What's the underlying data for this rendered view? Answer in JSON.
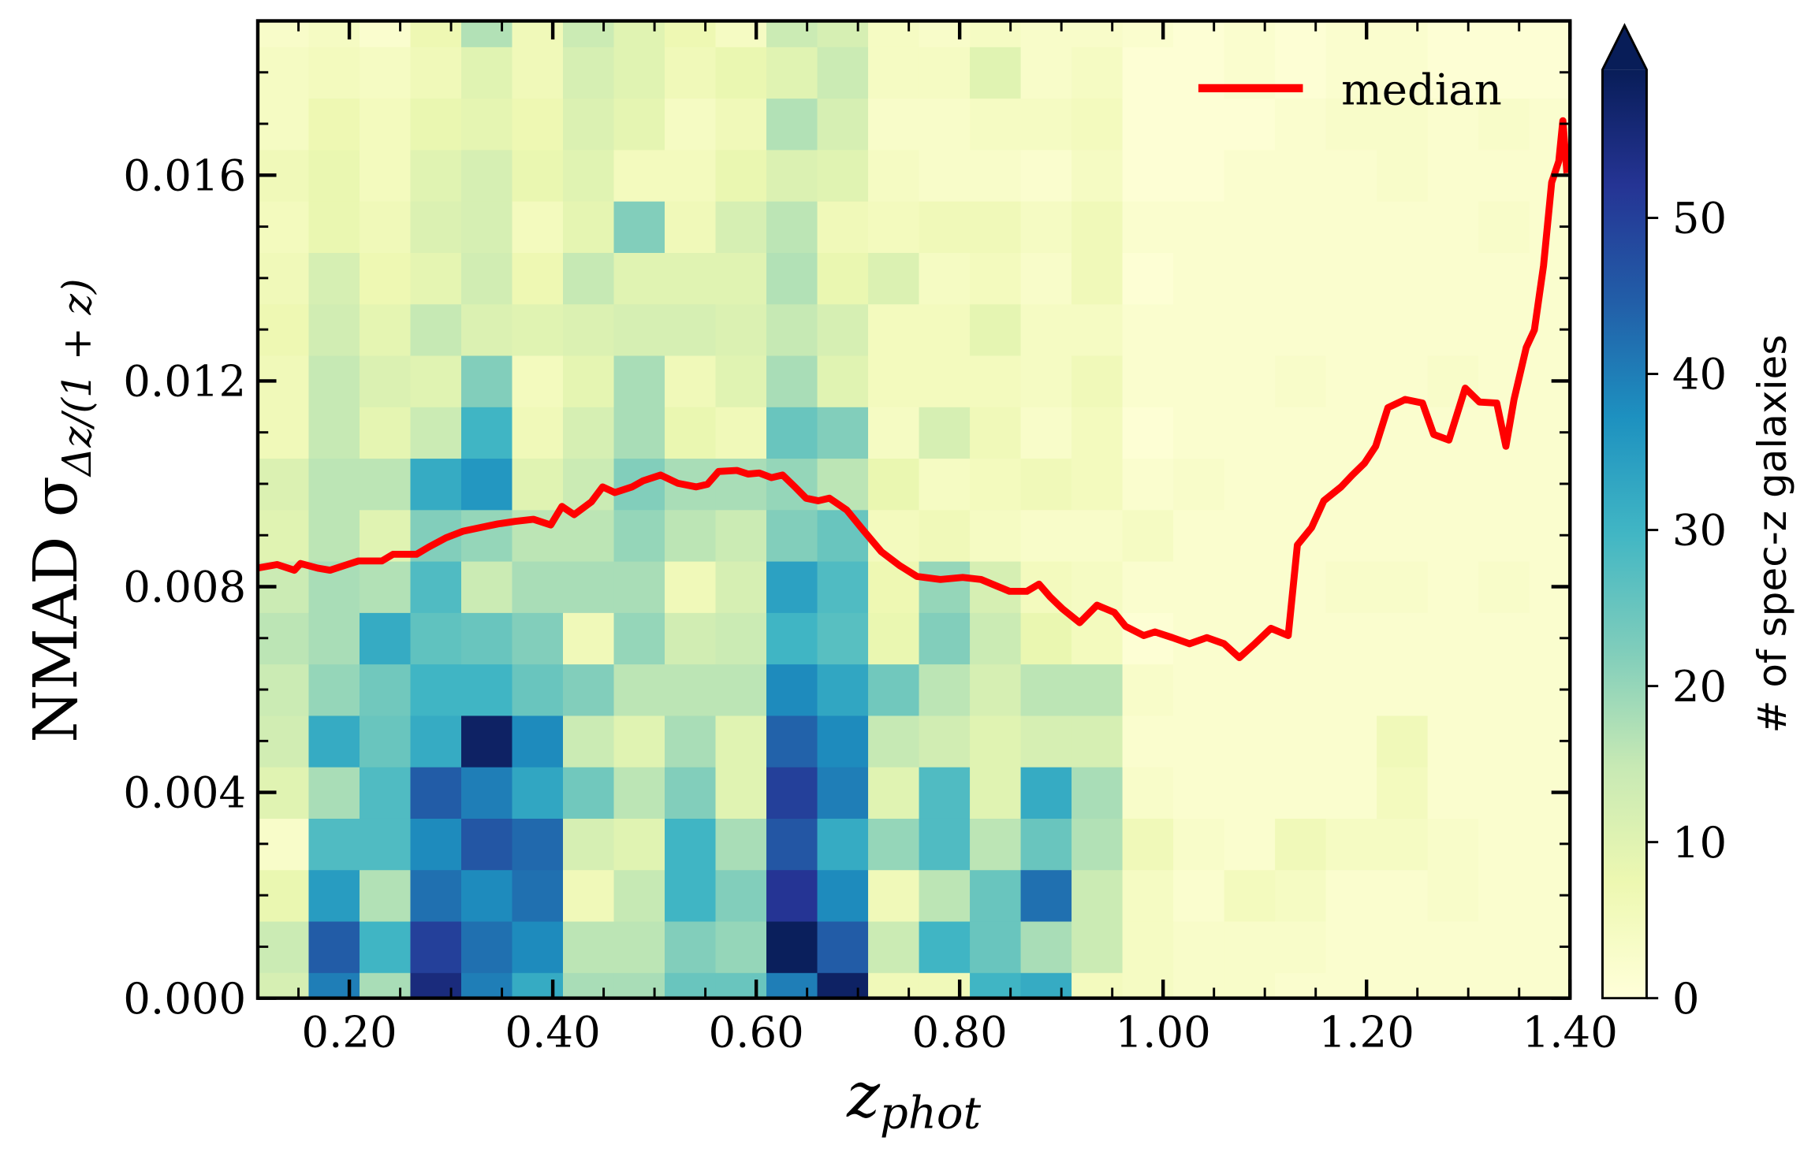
{
  "chart_data": {
    "type": "heatmap",
    "xlabel": {
      "main": "z",
      "sub": "phot"
    },
    "ylabel": {
      "main": "NMAD σ",
      "sub": "Δz/(1 + z)"
    },
    "colorbar_label": "# of spec-z galaxies",
    "colormap": "YlGnBu",
    "clim": [
      0,
      59.5
    ],
    "cticks": [
      0,
      10,
      20,
      30,
      40,
      50
    ],
    "xlim": [
      0.11,
      1.4
    ],
    "ylim": [
      0,
      0.019
    ],
    "xticks": [
      {
        "value": 0.2,
        "label": "0.20"
      },
      {
        "value": 0.4,
        "label": "0.40"
      },
      {
        "value": 0.6,
        "label": "0.60"
      },
      {
        "value": 0.8,
        "label": "0.80"
      },
      {
        "value": 1.0,
        "label": "1.00"
      },
      {
        "value": 1.2,
        "label": "1.20"
      },
      {
        "value": 1.4,
        "label": "1.40"
      }
    ],
    "yticks": [
      {
        "value": 0,
        "label": "0.000"
      },
      {
        "value": 0.004,
        "label": "0.004"
      },
      {
        "value": 0.008,
        "label": "0.008"
      },
      {
        "value": 0.012,
        "label": "0.012"
      },
      {
        "value": 0.016,
        "label": "0.016"
      }
    ],
    "x_bins": [
      0.11,
      0.16,
      0.21,
      0.26,
      0.31,
      0.36,
      0.41,
      0.46,
      0.51,
      0.56,
      0.61,
      0.66,
      0.71,
      0.76,
      0.81,
      0.86,
      0.91,
      0.96,
      1.01,
      1.06,
      1.11,
      1.16,
      1.21,
      1.26,
      1.31,
      1.36,
      1.41
    ],
    "y_bins": [
      -0.0005,
      0.0005,
      0.0015,
      0.0025,
      0.0035,
      0.0045,
      0.0055,
      0.0065,
      0.0075,
      0.0085,
      0.0095,
      0.0105,
      0.0115,
      0.0125,
      0.0135,
      0.0145,
      0.0155,
      0.0165,
      0.0175,
      0.0185,
      0.0195
    ],
    "counts": [
      [
        12,
        14,
        8,
        3,
        10,
        13,
        14,
        16,
        14,
        10,
        11,
        6,
        6,
        7,
        6,
        5,
        6,
        4,
        4,
        3
      ],
      [
        40,
        45,
        35,
        28,
        18,
        32,
        20,
        18,
        18,
        16,
        16,
        15,
        15,
        13,
        12,
        8,
        8,
        7,
        5,
        4
      ],
      [
        18,
        30,
        17,
        28,
        28,
        25,
        24,
        32,
        17,
        10,
        16,
        9,
        11,
        9,
        7,
        6,
        5,
        5,
        4,
        2
      ],
      [
        55,
        50,
        42,
        38,
        45,
        32,
        30,
        26,
        28,
        22,
        32,
        14,
        10,
        15,
        9,
        11,
        10,
        8,
        6,
        7
      ],
      [
        40,
        42,
        38,
        46,
        40,
        58,
        30,
        25,
        14,
        20,
        36,
        30,
        22,
        11,
        13,
        12,
        12,
        9,
        10,
        17
      ],
      [
        32,
        38,
        42,
        43,
        33,
        38,
        25,
        22,
        18,
        16,
        10,
        6,
        5,
        10,
        7,
        5,
        8,
        7,
        6,
        6
      ],
      [
        18,
        16,
        6,
        12,
        24,
        14,
        22,
        6,
        18,
        16,
        14,
        12,
        9,
        11,
        15,
        9,
        10,
        11,
        12,
        14
      ],
      [
        18,
        16,
        15,
        10,
        16,
        10,
        16,
        20,
        18,
        20,
        22,
        18,
        18,
        12,
        10,
        22,
        5,
        9,
        10,
        10
      ],
      [
        25,
        22,
        30,
        30,
        22,
        18,
        16,
        13,
        6,
        16,
        18,
        8,
        6,
        12,
        10,
        6,
        5,
        4,
        6,
        7
      ],
      [
        25,
        20,
        22,
        18,
        10,
        10,
        16,
        14,
        12,
        14,
        18,
        6,
        10,
        11,
        10,
        12,
        8,
        6,
        8,
        4
      ],
      [
        40,
        59,
        52,
        46,
        50,
        44,
        38,
        30,
        34,
        22,
        20,
        25,
        18,
        15,
        17,
        16,
        11,
        17,
        10,
        14
      ],
      [
        58,
        45,
        38,
        32,
        40,
        38,
        33,
        27,
        28,
        25,
        16,
        22,
        10,
        12,
        8,
        6,
        10,
        12,
        14,
        12
      ],
      [
        6,
        14,
        6,
        20,
        10,
        15,
        24,
        8,
        7,
        5,
        8,
        4,
        5,
        5,
        11,
        5,
        4,
        3,
        4,
        4
      ],
      [
        6,
        30,
        16,
        28,
        28,
        13,
        16,
        22,
        20,
        6,
        4,
        12,
        5,
        5,
        4,
        6,
        3,
        3,
        4,
        3
      ],
      [
        30,
        25,
        25,
        16,
        10,
        10,
        12,
        14,
        12,
        4,
        5,
        6,
        5,
        9,
        5,
        6,
        3,
        4,
        10,
        4
      ],
      [
        32,
        18,
        42,
        25,
        32,
        12,
        16,
        8,
        5,
        3,
        6,
        3,
        4,
        4,
        3,
        4,
        2,
        4,
        3,
        3
      ],
      [
        5,
        14,
        14,
        17,
        18,
        12,
        16,
        5,
        4,
        3,
        5,
        5,
        6,
        4,
        6,
        6,
        4,
        5,
        4,
        3
      ],
      [
        4,
        4,
        4,
        6,
        3,
        2,
        3,
        1,
        2,
        4,
        2,
        1,
        2,
        2,
        1,
        2,
        1,
        1,
        1,
        2
      ],
      [
        3,
        3,
        2,
        3,
        2,
        2,
        2,
        2,
        2,
        2,
        3,
        2,
        2,
        2,
        2,
        2,
        1,
        1,
        1,
        1
      ],
      [
        3,
        3,
        5,
        2,
        2,
        2,
        2,
        2,
        2,
        2,
        2,
        2,
        2,
        2,
        2,
        2,
        2,
        1,
        2,
        2
      ],
      [
        2,
        3,
        4,
        6,
        2,
        2,
        2,
        2,
        2,
        2,
        2,
        2,
        3,
        2,
        2,
        2,
        2,
        2,
        1,
        1
      ],
      [
        2,
        2,
        2,
        4,
        2,
        2,
        2,
        2,
        3,
        2,
        2,
        2,
        2,
        2,
        2,
        2,
        2,
        3,
        2,
        2
      ],
      [
        2,
        2,
        2,
        4,
        5,
        6,
        2,
        2,
        3,
        2,
        2,
        2,
        2,
        2,
        2,
        2,
        3,
        3,
        2,
        2
      ],
      [
        2,
        2,
        3,
        3,
        2,
        2,
        2,
        2,
        2,
        2,
        2,
        2,
        3,
        2,
        2,
        2,
        2,
        2,
        1,
        1
      ],
      [
        2,
        2,
        2,
        2,
        2,
        2,
        2,
        2,
        3,
        2,
        2,
        2,
        2,
        2,
        2,
        3,
        2,
        3,
        1,
        1
      ],
      [
        2,
        2,
        2,
        2,
        2,
        2,
        2,
        2,
        2,
        2,
        2,
        2,
        2,
        2,
        2,
        2,
        2,
        2,
        1,
        1
      ]
    ],
    "series": [
      {
        "name": "median",
        "color": "#ff0000",
        "x": [
          0.109,
          0.129,
          0.146,
          0.152,
          0.169,
          0.181,
          0.198,
          0.209,
          0.232,
          0.243,
          0.266,
          0.278,
          0.295,
          0.312,
          0.329,
          0.346,
          0.363,
          0.381,
          0.398,
          0.409,
          0.421,
          0.438,
          0.449,
          0.461,
          0.478,
          0.489,
          0.506,
          0.523,
          0.541,
          0.552,
          0.563,
          0.581,
          0.592,
          0.603,
          0.615,
          0.626,
          0.638,
          0.649,
          0.661,
          0.672,
          0.689,
          0.706,
          0.723,
          0.741,
          0.758,
          0.781,
          0.803,
          0.821,
          0.838,
          0.849,
          0.866,
          0.878,
          0.889,
          0.901,
          0.918,
          0.935,
          0.952,
          0.963,
          0.981,
          0.992,
          1.009,
          1.026,
          1.043,
          1.06,
          1.075,
          1.089,
          1.106,
          1.123,
          1.132,
          1.146,
          1.158,
          1.175,
          1.186,
          1.198,
          1.209,
          1.221,
          1.238,
          1.255,
          1.266,
          1.281,
          1.297,
          1.311,
          1.328,
          1.337,
          1.345,
          1.357,
          1.365,
          1.374,
          1.382,
          1.389,
          1.393,
          1.397
        ],
        "values": [
          0.00836,
          0.00843,
          0.00832,
          0.00845,
          0.00836,
          0.00832,
          0.00843,
          0.0085,
          0.0085,
          0.00863,
          0.00863,
          0.00877,
          0.00895,
          0.00908,
          0.00915,
          0.00922,
          0.00927,
          0.00931,
          0.0092,
          0.00956,
          0.0094,
          0.00965,
          0.00994,
          0.00983,
          0.00994,
          0.01006,
          0.01017,
          0.01001,
          0.00994,
          0.00999,
          0.01024,
          0.01026,
          0.01019,
          0.01021,
          0.01012,
          0.01017,
          0.00994,
          0.00972,
          0.00967,
          0.00972,
          0.00949,
          0.00908,
          0.00868,
          0.00841,
          0.0082,
          0.00814,
          0.00818,
          0.00814,
          0.008,
          0.00791,
          0.00791,
          0.00805,
          0.0078,
          0.00757,
          0.0073,
          0.00764,
          0.0075,
          0.00723,
          0.00705,
          0.00712,
          0.00701,
          0.00689,
          0.00701,
          0.00689,
          0.00662,
          0.00687,
          0.00719,
          0.00705,
          0.00881,
          0.00915,
          0.00967,
          0.00994,
          0.01017,
          0.0104,
          0.01073,
          0.01148,
          0.01164,
          0.01157,
          0.01096,
          0.01085,
          0.01186,
          0.01159,
          0.01157,
          0.01073,
          0.01164,
          0.01265,
          0.01299,
          0.01424,
          0.01586,
          0.01627,
          0.01706,
          0.01604
        ]
      }
    ]
  }
}
